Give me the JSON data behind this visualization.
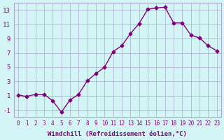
{
  "x": [
    0,
    1,
    2,
    3,
    4,
    5,
    6,
    7,
    8,
    9,
    10,
    11,
    12,
    13,
    14,
    15,
    16,
    17,
    18,
    19,
    20,
    21,
    22,
    23
  ],
  "y": [
    1.1,
    0.9,
    1.2,
    1.2,
    0.3,
    -1.3,
    0.4,
    1.2,
    3.1,
    4.1,
    5.0,
    7.2,
    8.0,
    9.7,
    11.1,
    13.1,
    13.3,
    13.4,
    11.2,
    11.2,
    9.5,
    9.1,
    8.0,
    7.3
  ],
  "x_labels": [
    "0",
    "1",
    "2",
    "3",
    "4",
    "5",
    "6",
    "7",
    "8",
    "9",
    "10",
    "11",
    "12",
    "13",
    "14",
    "15",
    "16",
    "17",
    "18",
    "19",
    "20",
    "21",
    "22",
    "23"
  ],
  "xlabel": "Windchill (Refroidissement éolien,°C)",
  "ylim": [
    -2,
    14
  ],
  "yticks": [
    -1,
    1,
    3,
    5,
    7,
    9,
    11,
    13
  ],
  "line_color": "#800080",
  "marker_color": "#800080",
  "bg_color": "#d4f5f5",
  "grid_color": "#aaaacc",
  "label_color": "#800080",
  "tick_color": "#800080"
}
